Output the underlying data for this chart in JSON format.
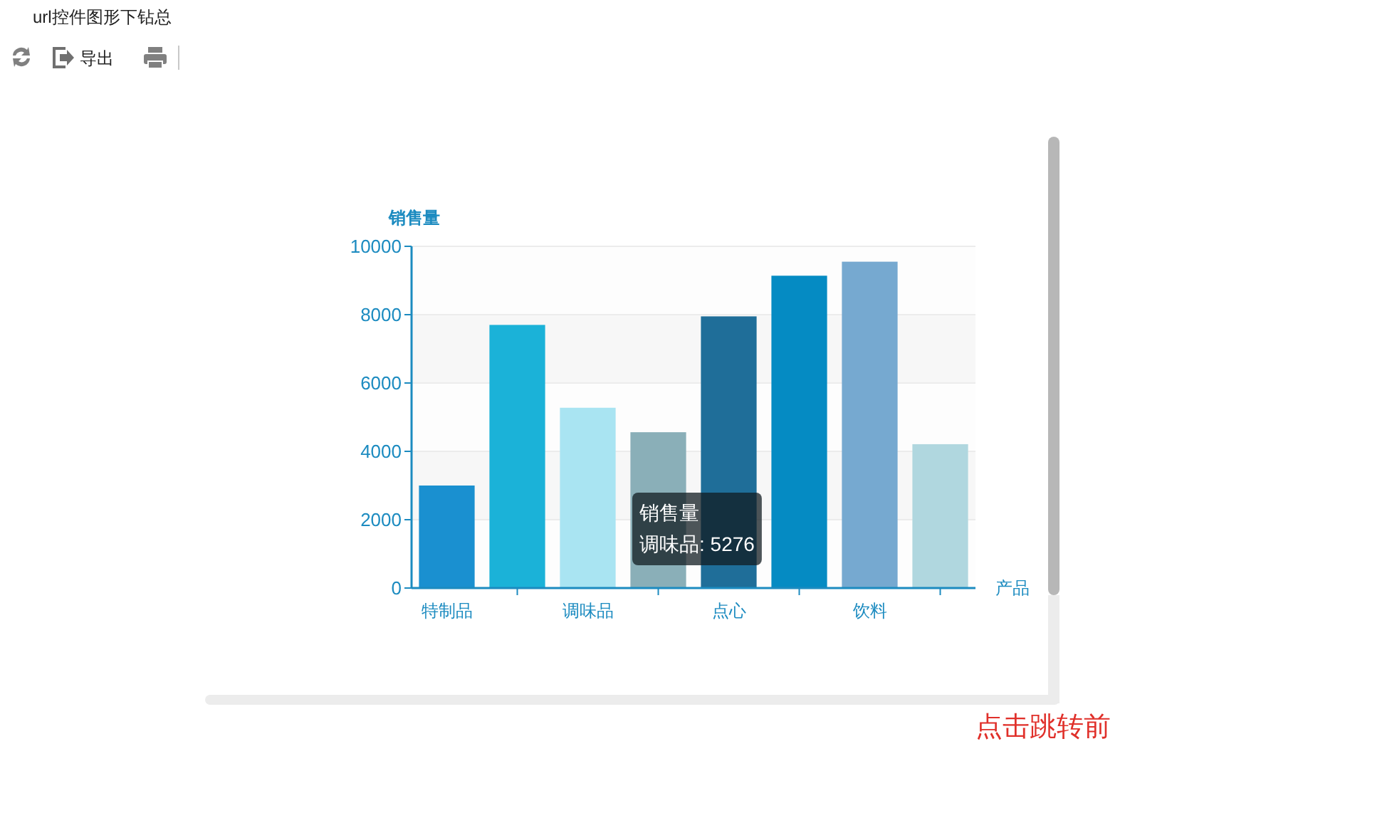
{
  "chart_data": {
    "type": "bar",
    "title": "url控件图形下钻总",
    "xlabel": "产品",
    "ylabel": "销售量",
    "categories": [
      "特制品",
      null,
      "调味品",
      null,
      "点心",
      null,
      "饮料",
      null
    ],
    "values": [
      3000,
      7700,
      5276,
      4560,
      7950,
      9140,
      9550,
      4210
    ],
    "colors": [
      "#1a90d0",
      "#1bb2d8",
      "#a9e4f2",
      "#8aafb8",
      "#1f6e99",
      "#058bc3",
      "#76a9d0",
      "#b0d7df"
    ],
    "ylim": [
      0,
      10000
    ],
    "yticks": [
      0,
      2000,
      4000,
      6000,
      8000,
      10000
    ],
    "grid": "y",
    "annotations": [
      "销售量",
      "调味品: 5276",
      "导出",
      "点击跳转前"
    ]
  }
}
